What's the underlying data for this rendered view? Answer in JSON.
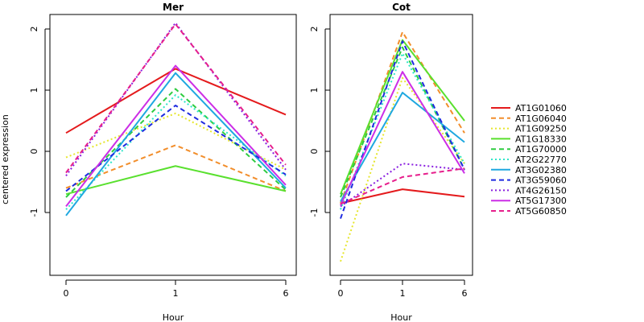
{
  "chart_data": {
    "type": "line",
    "ylabel": "centered expression",
    "xlabel": "Hour",
    "x": [
      "0",
      "1",
      "6"
    ],
    "y_ticks": [
      -1,
      0,
      1,
      2
    ],
    "ylim": [
      -2,
      2.2
    ],
    "panels": [
      {
        "title": "Mer",
        "series": [
          {
            "name": "AT1G01060",
            "color": "#e41a1c",
            "dash": "solid",
            "values": [
              0.3,
              1.35,
              0.6
            ]
          },
          {
            "name": "AT1G06040",
            "color": "#f28e2b",
            "dash": "dashed",
            "values": [
              -0.6,
              0.1,
              -0.65
            ]
          },
          {
            "name": "AT1G09250",
            "color": "#e6e62e",
            "dash": "dotted",
            "values": [
              -0.1,
              0.62,
              -0.3
            ]
          },
          {
            "name": "AT1G18330",
            "color": "#59e02e",
            "dash": "solid",
            "values": [
              -0.7,
              -0.24,
              -0.65
            ]
          },
          {
            "name": "AT1G70000",
            "color": "#2ecc40",
            "dash": "dashed",
            "values": [
              -0.75,
              1.02,
              -0.63
            ]
          },
          {
            "name": "AT2G22770",
            "color": "#2ee6c8",
            "dash": "dotted",
            "values": [
              -0.95,
              0.92,
              -0.4
            ]
          },
          {
            "name": "AT3G02380",
            "color": "#1fa8e0",
            "dash": "solid",
            "values": [
              -1.05,
              1.28,
              -0.6
            ]
          },
          {
            "name": "AT3G59060",
            "color": "#1f2be0",
            "dash": "dashed",
            "values": [
              -0.65,
              0.75,
              -0.38
            ]
          },
          {
            "name": "AT4G26150",
            "color": "#8a1fe0",
            "dash": "dotted",
            "values": [
              -0.4,
              2.1,
              -0.3
            ]
          },
          {
            "name": "AT5G17300",
            "color": "#cc2ee6",
            "dash": "solid",
            "values": [
              -0.9,
              1.4,
              -0.55
            ]
          },
          {
            "name": "AT5G60850",
            "color": "#e61f8c",
            "dash": "dashed",
            "values": [
              -0.35,
              2.08,
              -0.22
            ]
          }
        ]
      },
      {
        "title": "Cot",
        "series": [
          {
            "name": "AT1G01060",
            "color": "#e41a1c",
            "dash": "solid",
            "values": [
              -0.85,
              -0.62,
              -0.74
            ]
          },
          {
            "name": "AT1G06040",
            "color": "#f28e2b",
            "dash": "dashed",
            "values": [
              -0.85,
              1.95,
              0.3
            ]
          },
          {
            "name": "AT1G09250",
            "color": "#e6e62e",
            "dash": "dotted",
            "values": [
              -1.8,
              1.2,
              -0.2
            ]
          },
          {
            "name": "AT1G18330",
            "color": "#59e02e",
            "dash": "solid",
            "values": [
              -0.7,
              1.82,
              0.5
            ]
          },
          {
            "name": "AT1G70000",
            "color": "#2ecc40",
            "dash": "dashed",
            "values": [
              -0.75,
              1.7,
              -0.3
            ]
          },
          {
            "name": "AT2G22770",
            "color": "#2ee6c8",
            "dash": "dotted",
            "values": [
              -0.95,
              1.6,
              -0.2
            ]
          },
          {
            "name": "AT3G02380",
            "color": "#1fa8e0",
            "dash": "solid",
            "values": [
              -0.82,
              0.96,
              0.15
            ]
          },
          {
            "name": "AT3G59060",
            "color": "#1f2be0",
            "dash": "dashed",
            "values": [
              -1.1,
              1.8,
              -0.3
            ]
          },
          {
            "name": "AT4G26150",
            "color": "#8a1fe0",
            "dash": "dotted",
            "values": [
              -0.9,
              -0.2,
              -0.3
            ]
          },
          {
            "name": "AT5G17300",
            "color": "#cc2ee6",
            "dash": "solid",
            "values": [
              -0.88,
              1.3,
              -0.36
            ]
          },
          {
            "name": "AT5G60850",
            "color": "#e61f8c",
            "dash": "dashed",
            "values": [
              -0.86,
              -0.42,
              -0.28
            ]
          }
        ]
      }
    ],
    "legend": {
      "position": "right",
      "entries": [
        {
          "name": "AT1G01060",
          "color": "#e41a1c",
          "dash": "solid"
        },
        {
          "name": "AT1G06040",
          "color": "#f28e2b",
          "dash": "dashed"
        },
        {
          "name": "AT1G09250",
          "color": "#e6e62e",
          "dash": "dotted"
        },
        {
          "name": "AT1G18330",
          "color": "#59e02e",
          "dash": "solid"
        },
        {
          "name": "AT1G70000",
          "color": "#2ecc40",
          "dash": "dashed"
        },
        {
          "name": "AT2G22770",
          "color": "#2ee6c8",
          "dash": "dotted"
        },
        {
          "name": "AT3G02380",
          "color": "#1fa8e0",
          "dash": "solid"
        },
        {
          "name": "AT3G59060",
          "color": "#1f2be0",
          "dash": "dashed"
        },
        {
          "name": "AT4G26150",
          "color": "#8a1fe0",
          "dash": "dotted"
        },
        {
          "name": "AT5G17300",
          "color": "#cc2ee6",
          "dash": "solid"
        },
        {
          "name": "AT5G60850",
          "color": "#e61f8c",
          "dash": "dashed"
        }
      ]
    }
  }
}
